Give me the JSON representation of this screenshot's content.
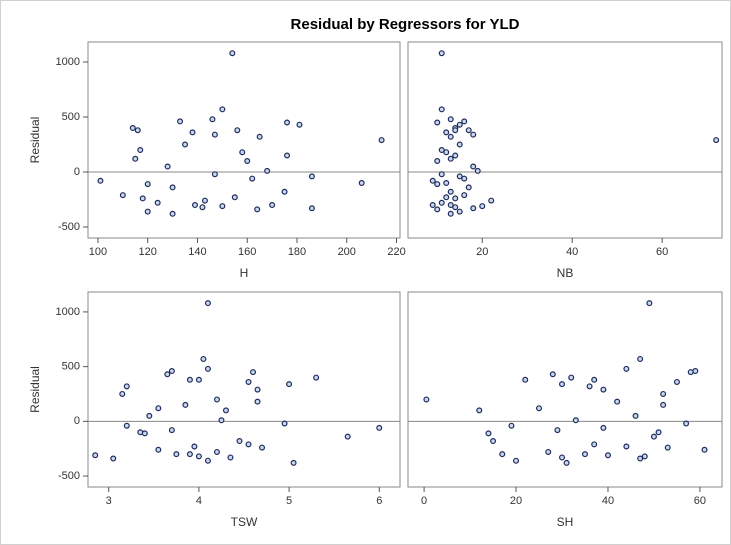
{
  "title": "Residual by Regressors for YLD",
  "chart_data": [
    {
      "type": "scatter",
      "x_label": "H",
      "y_label": "Residual",
      "color": "#1f2b5b",
      "x": [
        154,
        150,
        146,
        133,
        176,
        181,
        114,
        116,
        156,
        138,
        147,
        165,
        214,
        135,
        117,
        158,
        176,
        115,
        160,
        128,
        168,
        147,
        186,
        162,
        101,
        206,
        120,
        130,
        175,
        110,
        155,
        118,
        143,
        124,
        139,
        150,
        186,
        164,
        120,
        130,
        170,
        142
      ],
      "values": [
        1080,
        570,
        480,
        460,
        450,
        430,
        400,
        380,
        380,
        360,
        340,
        320,
        290,
        250,
        200,
        180,
        150,
        120,
        100,
        50,
        10,
        -20,
        -40,
        -60,
        -80,
        -100,
        -110,
        -140,
        -180,
        -210,
        -230,
        -240,
        -260,
        -280,
        -300,
        -310,
        -330,
        -340,
        -360,
        -380,
        -300,
        -320
      ],
      "xlim": [
        96,
        221.4
      ],
      "ylim": [
        -600,
        1182
      ],
      "xticks": [
        100,
        120,
        140,
        160,
        180,
        200,
        220
      ],
      "yticks": [
        -500,
        0,
        500,
        1000
      ],
      "reference_y": 0
    },
    {
      "type": "scatter",
      "x_label": "NB",
      "color": "#1f2b5b",
      "x": [
        11,
        11,
        13,
        16,
        10,
        15,
        14,
        17,
        14,
        12,
        18,
        13,
        72,
        15,
        11,
        12,
        14,
        13,
        10,
        18,
        19,
        11,
        15,
        16,
        9,
        12,
        10,
        17,
        13,
        16,
        12,
        14,
        22,
        11,
        13,
        20,
        18,
        10,
        15,
        13,
        9,
        14
      ],
      "values": [
        1080,
        570,
        480,
        460,
        450,
        430,
        400,
        380,
        380,
        360,
        340,
        320,
        290,
        250,
        200,
        180,
        150,
        120,
        100,
        50,
        10,
        -20,
        -40,
        -60,
        -80,
        -100,
        -110,
        -140,
        -180,
        -210,
        -230,
        -240,
        -260,
        -280,
        -300,
        -310,
        -330,
        -340,
        -360,
        -380,
        -300,
        -320
      ],
      "xlim": [
        3.5,
        73.3
      ],
      "ylim": [
        -600,
        1182
      ],
      "xticks": [
        20,
        40,
        60
      ],
      "reference_y": 0
    },
    {
      "type": "scatter",
      "x_label": "TSW",
      "y_label": "Residual",
      "color": "#1f2b5b",
      "x": [
        4.1,
        4.05,
        4.1,
        3.7,
        4.6,
        3.65,
        5.3,
        4.0,
        3.9,
        4.55,
        5.0,
        3.2,
        4.65,
        3.15,
        4.2,
        4.65,
        3.85,
        3.55,
        4.3,
        3.45,
        4.25,
        4.95,
        3.2,
        6.0,
        3.7,
        3.35,
        3.4,
        5.65,
        4.45,
        4.55,
        3.95,
        4.7,
        3.55,
        4.2,
        3.9,
        2.85,
        4.35,
        3.05,
        4.1,
        5.05,
        3.75,
        4.0
      ],
      "values": [
        1080,
        570,
        480,
        460,
        450,
        430,
        400,
        380,
        380,
        360,
        340,
        320,
        290,
        250,
        200,
        180,
        150,
        120,
        100,
        50,
        10,
        -20,
        -40,
        -60,
        -80,
        -100,
        -110,
        -140,
        -180,
        -210,
        -230,
        -240,
        -260,
        -280,
        -300,
        -310,
        -330,
        -340,
        -360,
        -380,
        -300,
        -320
      ],
      "xlim": [
        2.77,
        6.23
      ],
      "ylim": [
        -600,
        1182
      ],
      "xticks": [
        3,
        4,
        5,
        6
      ],
      "yticks": [
        -500,
        0,
        500,
        1000
      ],
      "reference_y": 0
    },
    {
      "type": "scatter",
      "x_label": "SH",
      "color": "#1f2b5b",
      "x": [
        49,
        47,
        44,
        59,
        58,
        28,
        32,
        22,
        37,
        55,
        30,
        36,
        39,
        52,
        0.5,
        42,
        52,
        25,
        12,
        46,
        33,
        57,
        19,
        39,
        29,
        51,
        14,
        50,
        15,
        37,
        44,
        53,
        61,
        27,
        17,
        40,
        30,
        47,
        20,
        31,
        35,
        48
      ],
      "values": [
        1080,
        570,
        480,
        460,
        450,
        430,
        400,
        380,
        380,
        360,
        340,
        320,
        290,
        250,
        200,
        180,
        150,
        120,
        100,
        50,
        10,
        -20,
        -40,
        -60,
        -80,
        -100,
        -110,
        -140,
        -180,
        -210,
        -230,
        -240,
        -260,
        -280,
        -300,
        -310,
        -330,
        -340,
        -360,
        -380,
        -300,
        -320
      ],
      "xlim": [
        -3.5,
        64.8
      ],
      "ylim": [
        -600,
        1182
      ],
      "xticks": [
        0,
        20,
        40,
        60
      ],
      "reference_y": 0
    }
  ]
}
